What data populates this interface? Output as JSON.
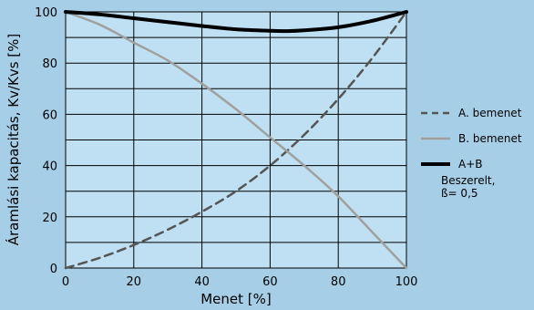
{
  "chart_data": {
    "type": "line",
    "xlabel": "Menet [%]",
    "ylabel": "Áramlási kapacitás, Kv/Kvs [%]",
    "xlim": [
      0,
      100
    ],
    "ylim": [
      0,
      100
    ],
    "x_ticks": [
      "0",
      "20",
      "40",
      "60",
      "80",
      "100"
    ],
    "y_ticks": [
      "0",
      "20",
      "40",
      "60",
      "80",
      "100"
    ],
    "grid": true,
    "legend_position": "right",
    "series": [
      {
        "name": "A. bemenet",
        "style": "dashed",
        "color": "#555555",
        "x": [
          0,
          10,
          20,
          30,
          40,
          50,
          60,
          70,
          80,
          90,
          100
        ],
        "y": [
          0,
          4,
          9,
          15,
          22,
          30,
          40,
          52,
          66,
          82,
          100
        ]
      },
      {
        "name": "B. bemenet",
        "style": "solid",
        "color": "#a0a0a0",
        "x": [
          0,
          10,
          20,
          30,
          40,
          50,
          60,
          70,
          80,
          90,
          100
        ],
        "y": [
          100,
          95,
          88,
          81,
          72,
          62,
          51,
          40,
          28,
          14,
          0
        ]
      },
      {
        "name": "A+B",
        "style": "solid-bold",
        "color": "#000000",
        "x": [
          0,
          10,
          20,
          30,
          40,
          50,
          60,
          65,
          70,
          80,
          90,
          100
        ],
        "y": [
          100,
          99,
          97.5,
          96,
          94.5,
          93.2,
          92.6,
          92.5,
          92.8,
          94,
          96.5,
          100
        ]
      }
    ],
    "note": [
      "Beszerelt,",
      "ß= 0,5"
    ]
  }
}
